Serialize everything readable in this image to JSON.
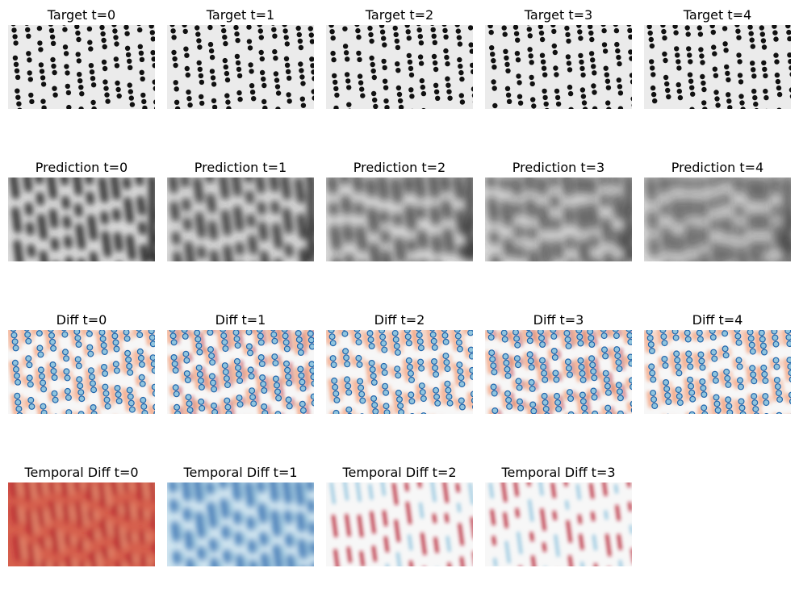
{
  "rows": [
    {
      "kind": "target",
      "titles": [
        "Target t=0",
        "Target t=1",
        "Target t=2",
        "Target t=3",
        "Target t=4"
      ]
    },
    {
      "kind": "prediction",
      "titles": [
        "Prediction t=0",
        "Prediction t=1",
        "Prediction t=2",
        "Prediction t=3",
        "Prediction t=4"
      ]
    },
    {
      "kind": "diff",
      "titles": [
        "Diff t=0",
        "Diff t=1",
        "Diff t=2",
        "Diff t=3",
        "Diff t=4"
      ]
    },
    {
      "kind": "temporal",
      "titles": [
        "Temporal Diff t=0",
        "Temporal Diff t=1",
        "Temporal Diff t=2",
        "Temporal Diff t=3"
      ]
    }
  ],
  "colors": {
    "target_bg": "#ebebeb",
    "dot": "#111111",
    "red_strong": "#b2182b",
    "red_light": "#f4a582",
    "blue_strong": "#2166ac",
    "blue_light": "#92c5de",
    "neutral": "#f7f7f7"
  }
}
